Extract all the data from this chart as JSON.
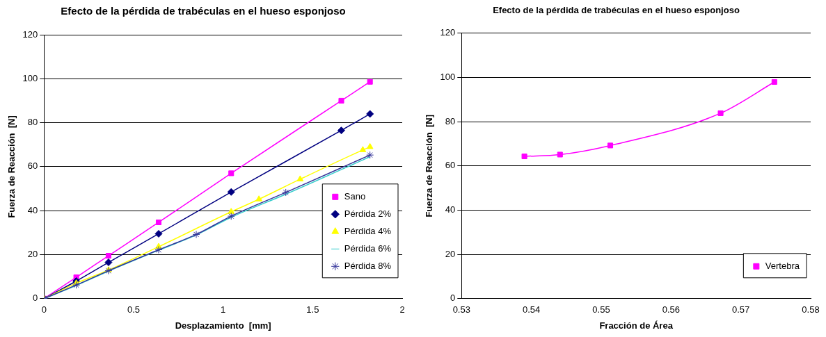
{
  "chart_data": [
    {
      "type": "line",
      "title": "Efecto de la pérdida de trabéculas en el hueso esponjoso",
      "xlabel": "Desplazamiento  [mm]",
      "ylabel": "Fuerza de Reacción  [N]",
      "xlim": [
        0,
        2
      ],
      "xticks": [
        0,
        0.5,
        1,
        1.5,
        2
      ],
      "ylim": [
        0,
        120
      ],
      "yticks": [
        0,
        20,
        40,
        60,
        80,
        100,
        120
      ],
      "grid": "y",
      "legend": "bottom right",
      "series": [
        {
          "name": "Sano",
          "color": "#ff00ff",
          "marker": "square",
          "x": [
            0,
            0.18,
            0.36,
            0.64,
            1.045,
            1.66,
            1.82
          ],
          "values": [
            0,
            9.7,
            19.5,
            34.7,
            57,
            90,
            98.6
          ]
        },
        {
          "name": "Pérdida 2%",
          "color": "#000080",
          "marker": "diamond",
          "x": [
            0,
            0.18,
            0.36,
            0.64,
            1.045,
            1.66,
            1.82
          ],
          "values": [
            0,
            8,
            16.5,
            29.5,
            48.5,
            76.5,
            84
          ]
        },
        {
          "name": "Pérdida 4%",
          "color": "#ffff00",
          "marker": "triangle",
          "x": [
            0,
            0.18,
            0.36,
            0.64,
            1.045,
            1.2,
            1.43,
            1.78,
            1.82
          ],
          "values": [
            0,
            7,
            13,
            23.6,
            39.5,
            45.2,
            54.3,
            67.6,
            69
          ]
        },
        {
          "name": "Pérdida 6%",
          "color": "#33cccc",
          "marker": "none",
          "x": [
            0,
            0.18,
            0.36,
            0.64,
            0.85,
            1.045,
            1.35,
            1.82
          ],
          "values": [
            0,
            6,
            12.5,
            22,
            29,
            37,
            47.5,
            64.5
          ]
        },
        {
          "name": "Pérdida 8%",
          "color": "#333399",
          "marker": "cross",
          "x": [
            0,
            0.18,
            0.36,
            0.64,
            0.85,
            1.045,
            1.35,
            1.82
          ],
          "values": [
            0,
            6.2,
            12.7,
            22.2,
            29.2,
            37.5,
            48.3,
            65.3
          ]
        }
      ]
    },
    {
      "type": "line",
      "title": "Efecto de la pérdida de trabéculas en el hueso esponjoso",
      "xlabel": "Fracción de Área",
      "ylabel": "Fuerza de Reacción  [N]",
      "xlim": [
        0.53,
        0.58
      ],
      "xticks": [
        0.53,
        0.54,
        0.55,
        0.56,
        0.57,
        0.58
      ],
      "ylim": [
        0,
        120
      ],
      "yticks": [
        0,
        20,
        40,
        60,
        80,
        100,
        120
      ],
      "grid": "y",
      "legend": "bottom right",
      "series": [
        {
          "name": "Vertebra",
          "color": "#ff00ff",
          "marker": "square",
          "x": [
            0.539,
            0.5441,
            0.5513,
            0.5671,
            0.5748
          ],
          "values": [
            64.3,
            65.1,
            69.2,
            83.8,
            97.9
          ]
        }
      ]
    }
  ]
}
